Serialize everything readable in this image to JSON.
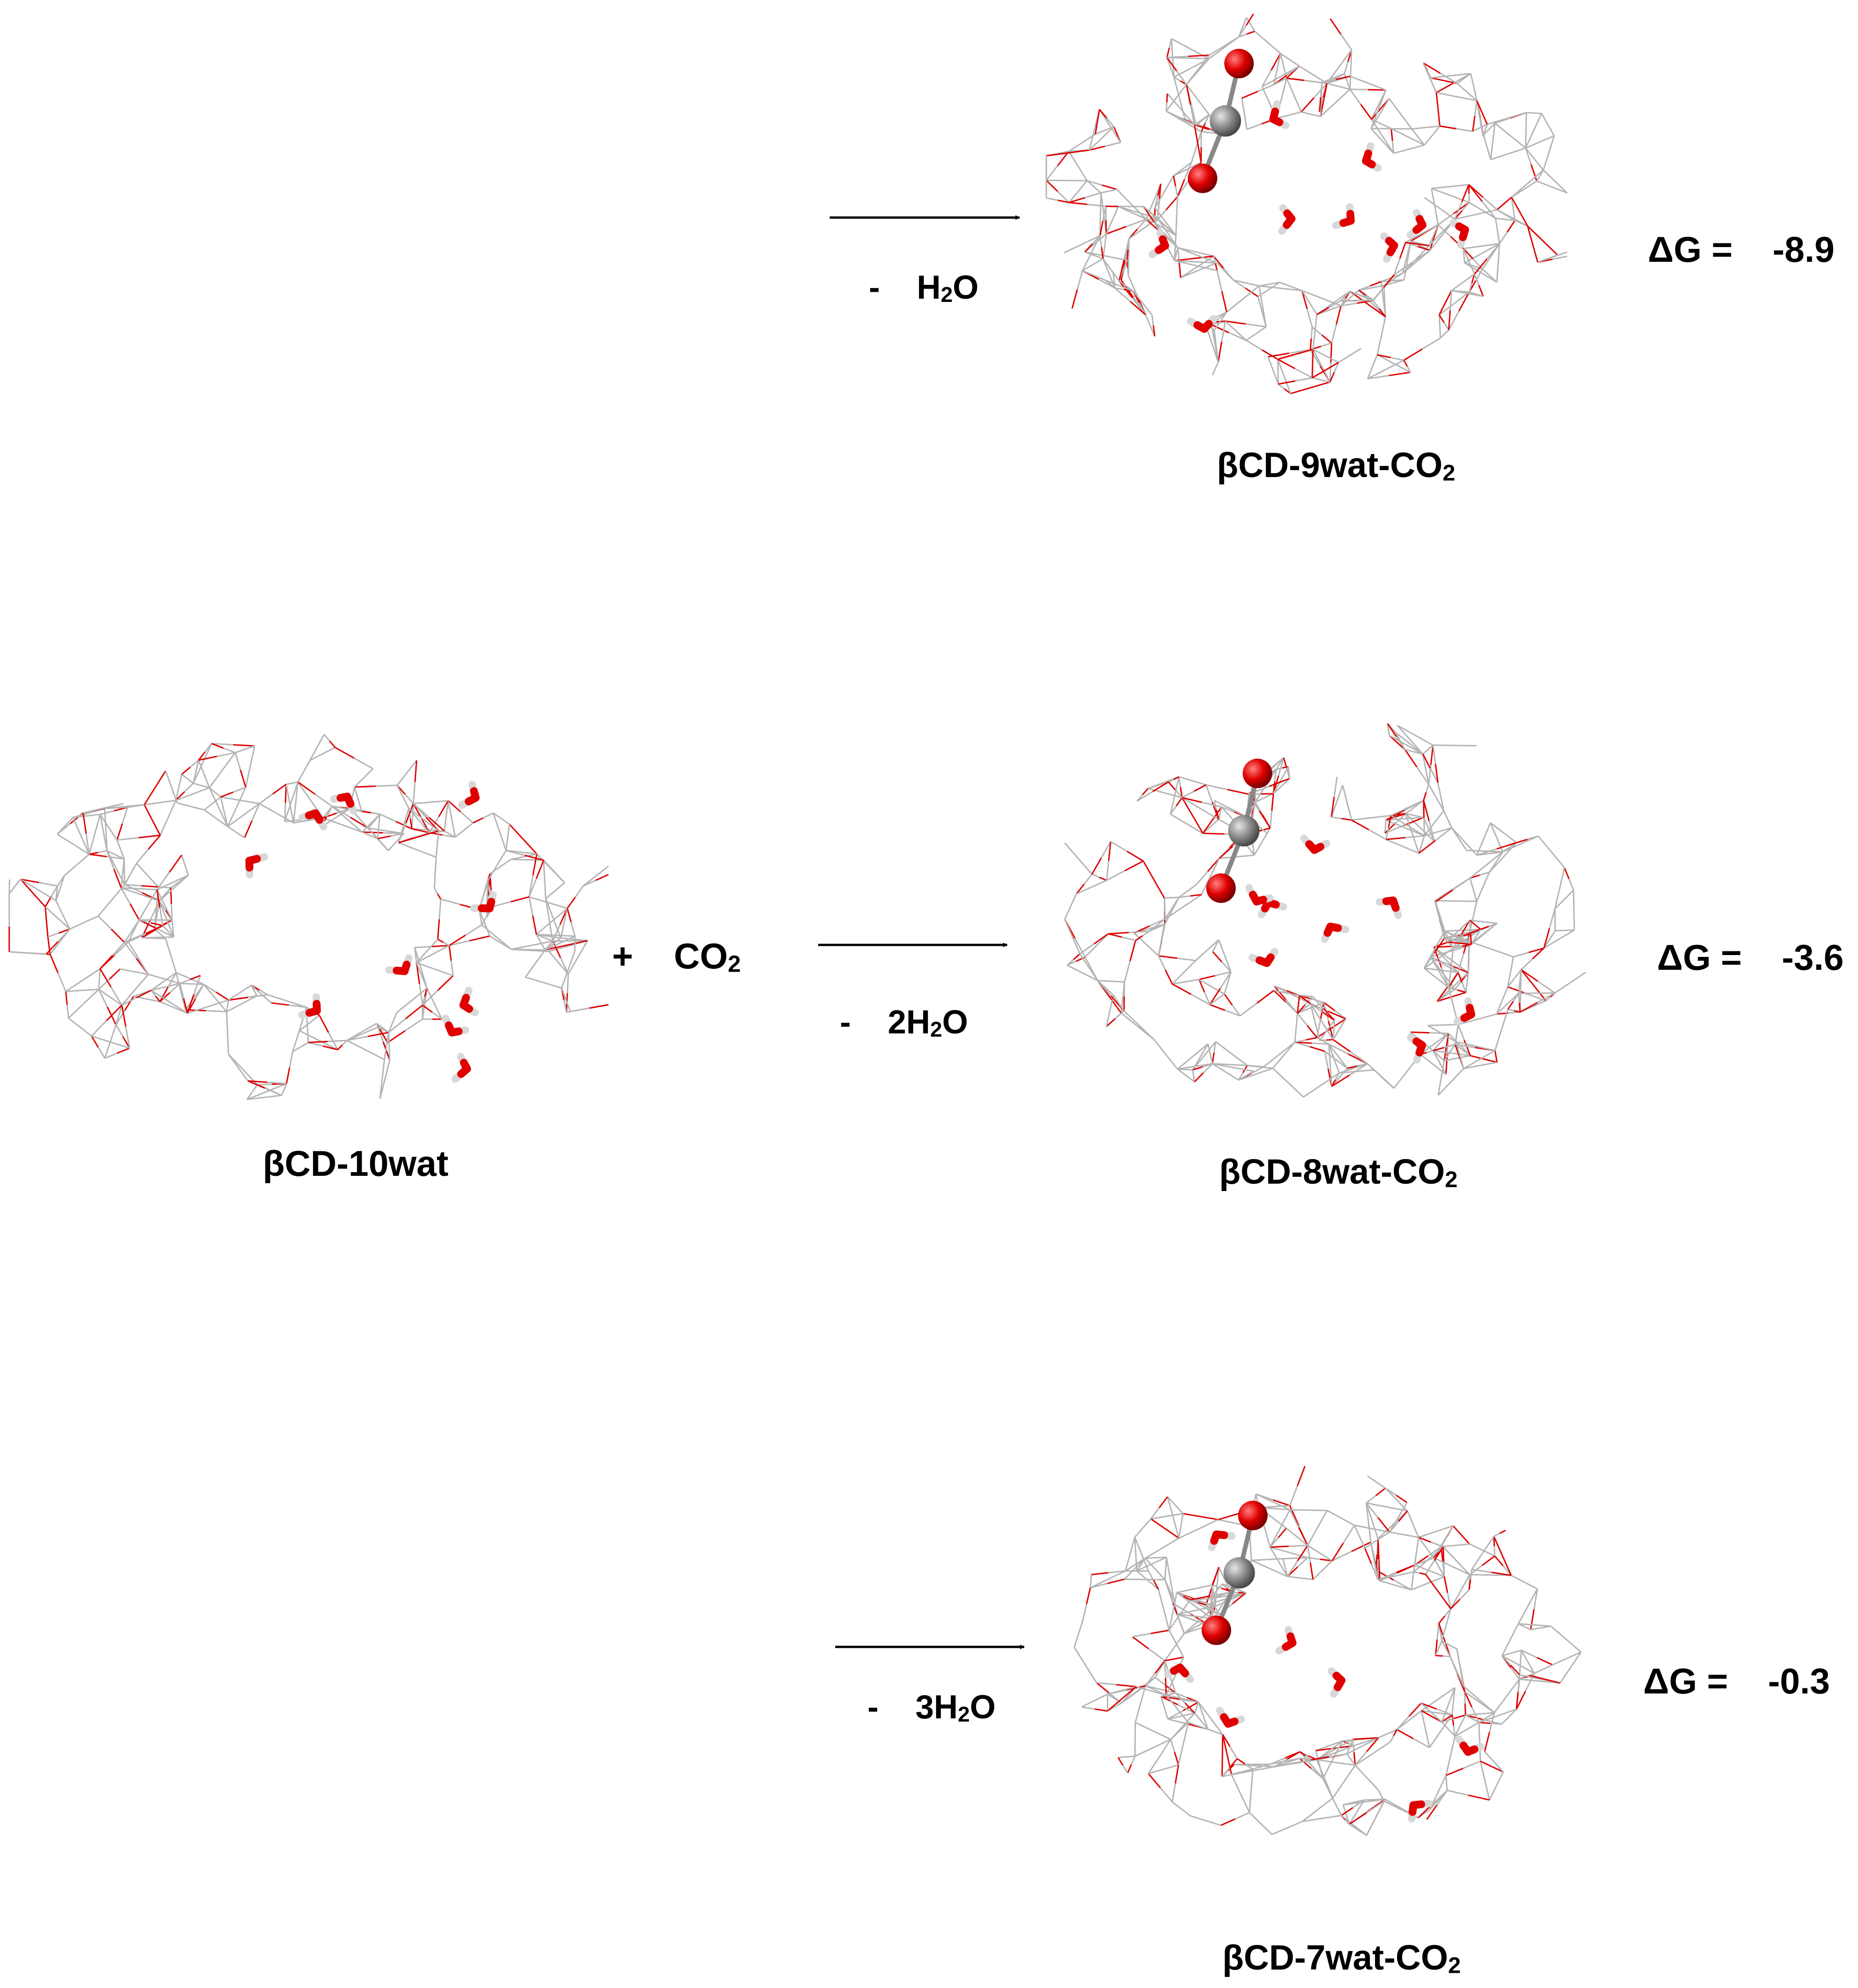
{
  "reactant": {
    "name_main": "βCD-10wat",
    "plus": "+",
    "co2_main": "CO",
    "co2_sub": "2"
  },
  "reactions": [
    {
      "id": "r1",
      "condition_minus": "-",
      "condition_pre": "H",
      "condition_sub": "2",
      "condition_post": "O",
      "product_main": "βCD-9wat-CO",
      "product_sub": "2",
      "dg_label": "ΔG =",
      "dg_value": "-8.9"
    },
    {
      "id": "r2",
      "condition_minus": "-",
      "condition_pre": "2H",
      "condition_sub": "2",
      "condition_post": "O",
      "product_main": "βCD-8wat-CO",
      "product_sub": "2",
      "dg_label": "ΔG =",
      "dg_value": "-3.6"
    },
    {
      "id": "r3",
      "condition_minus": "-",
      "condition_pre": "3H",
      "condition_sub": "2",
      "condition_post": "O",
      "product_main": "βCD-7wat-CO",
      "product_sub": "2",
      "dg_label": "ΔG =",
      "dg_value": "-0.3"
    }
  ],
  "colors": {
    "bond": "#b4b4b4",
    "oxygen": "#e00000",
    "carbon_atom": "#8c8c8c",
    "hydrogen": "#d8d8d8",
    "arrow": "#000000",
    "text": "#000000"
  }
}
